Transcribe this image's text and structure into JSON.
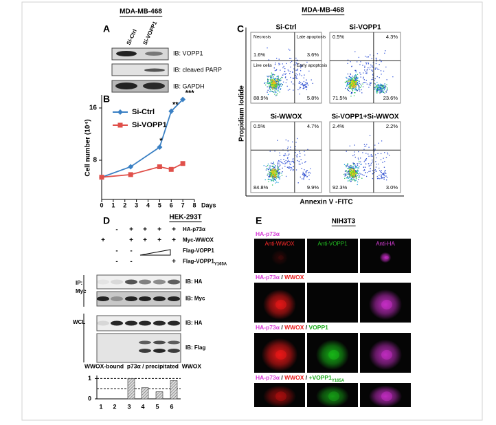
{
  "panel_a": {
    "label": "A",
    "title": "MDA-MB-468",
    "lanes": [
      "Si-Ctrl",
      "Si-VOPP1"
    ],
    "blots": [
      "IB: VOPP1",
      "IB: cleaved PARP",
      "IB: GAPDH"
    ]
  },
  "panel_b": {
    "label": "B"
  },
  "panel_c": {
    "label": "C",
    "title": "MDA-MB-468",
    "y_label": "Propidium Iodide",
    "x_label": "Annexin V -FITC",
    "quadrant_labels": [
      "Necrosis",
      "Late apoptosis",
      "Live cells",
      "Early apoptosis"
    ],
    "plots": [
      {
        "title": "Si-Ctrl",
        "quadrants": [
          "1.6%",
          "3.6%",
          "88.9%",
          "5.8%"
        ]
      },
      {
        "title": "Si-VOPP1",
        "quadrants": [
          "0.5%",
          "4.3%",
          "71.5%",
          "23.6%"
        ]
      },
      {
        "title": "Si-WWOX",
        "quadrants": [
          "0.5%",
          "4.7%",
          "84.8%",
          "9.9%"
        ]
      },
      {
        "title": "Si-VOPP1+Si-WWOX",
        "quadrants": [
          "2.4%",
          "2.2%",
          "92.3%",
          "3.0%"
        ]
      }
    ]
  },
  "panel_d": {
    "label": "D",
    "title": "HEK-293T",
    "treatments": [
      {
        "label": "HA-p73α",
        "signs": [
          null,
          "-",
          "+",
          "+",
          "+",
          "+"
        ]
      },
      {
        "label": "Myc-WWOX",
        "signs": [
          "+",
          null,
          "+",
          "+",
          "+",
          "+"
        ]
      },
      {
        "label": "Flag-VOPP1",
        "signs": [
          null,
          "-",
          "-",
          null,
          null,
          null
        ]
      },
      {
        "label": "Flag-VOPP1",
        "label_sub": "Y165A",
        "signs": [
          null,
          "-",
          "-",
          null,
          null,
          "+"
        ]
      }
    ],
    "ip_label": "IP:",
    "ip_antibody": "Myc",
    "wcl_label": "WCL",
    "blots": [
      "IB: HA",
      "IB: Myc",
      "IB: HA",
      "IB: Flag"
    ]
  },
  "panel_e": {
    "label": "E",
    "title": "NIH3T3",
    "column_labels": [
      {
        "text": "Anti-WWOX",
        "color": "#ff2a2a"
      },
      {
        "text": "Anti-VOPP1",
        "color": "#22c022"
      },
      {
        "text": "Anti-HA",
        "color": "#e040e0"
      }
    ],
    "rows": [
      [
        {
          "text": "HA-p73α",
          "color": "#d83cd8"
        }
      ],
      [
        {
          "text": "HA-p73α",
          "color": "#d83cd8"
        },
        {
          "text": " / ",
          "color": "#000000"
        },
        {
          "text": "WWOX",
          "color": "#e81818"
        }
      ],
      [
        {
          "text": "HA-p73α",
          "color": "#d83cd8"
        },
        {
          "text": " / ",
          "color": "#000000"
        },
        {
          "text": "WWOX",
          "color": "#e81818"
        },
        {
          "text": " / ",
          "color": "#000000"
        },
        {
          "text": "VOPP1",
          "color": "#18a818"
        }
      ],
      [
        {
          "text": "HA-p73α",
          "color": "#d83cd8"
        },
        {
          "text": " / ",
          "color": "#000000"
        },
        {
          "text": "WWOX",
          "color": "#e81818"
        },
        {
          "text": " / ",
          "color": "#000000"
        },
        {
          "text": "+VOPP1",
          "color": "#18a818"
        },
        {
          "text": "Y165A",
          "color": "#18a818",
          "sub": true
        }
      ]
    ]
  },
  "chart_data": [
    {
      "type": "line",
      "x_label": "Days",
      "y_label": "Cell number (10⁴)",
      "x": [
        0,
        2.5,
        5,
        6,
        7
      ],
      "xlim": [
        0,
        8
      ],
      "xticks": [
        0,
        1,
        2,
        3,
        4,
        5,
        6,
        7,
        8
      ],
      "ylim": [
        2,
        18
      ],
      "yticks": [
        8,
        16
      ],
      "legend": "top-left",
      "series": [
        {
          "name": "Si-Ctrl",
          "color": "#3a80c4",
          "marker": "diamond",
          "values": [
            5.4,
            7,
            10,
            15.5,
            17.3
          ]
        },
        {
          "name": "Si-VOPP1",
          "color": "#e0504a",
          "marker": "square",
          "values": [
            5.4,
            5.8,
            7,
            6.6,
            7.5
          ]
        }
      ],
      "annotations": [
        "*",
        "**",
        "***"
      ]
    },
    {
      "type": "bar",
      "title": "WWOX-bound  p73α / precipitated  WWOX",
      "categories": [
        "1",
        "2",
        "3",
        "4",
        "5",
        "6"
      ],
      "values": [
        0,
        0,
        1,
        0.55,
        0.35,
        0.9
      ],
      "ylim": [
        0,
        1.15
      ],
      "yticks": [
        0,
        1
      ],
      "reference_lines": [
        0.5,
        1
      ],
      "color": "#666666"
    }
  ]
}
